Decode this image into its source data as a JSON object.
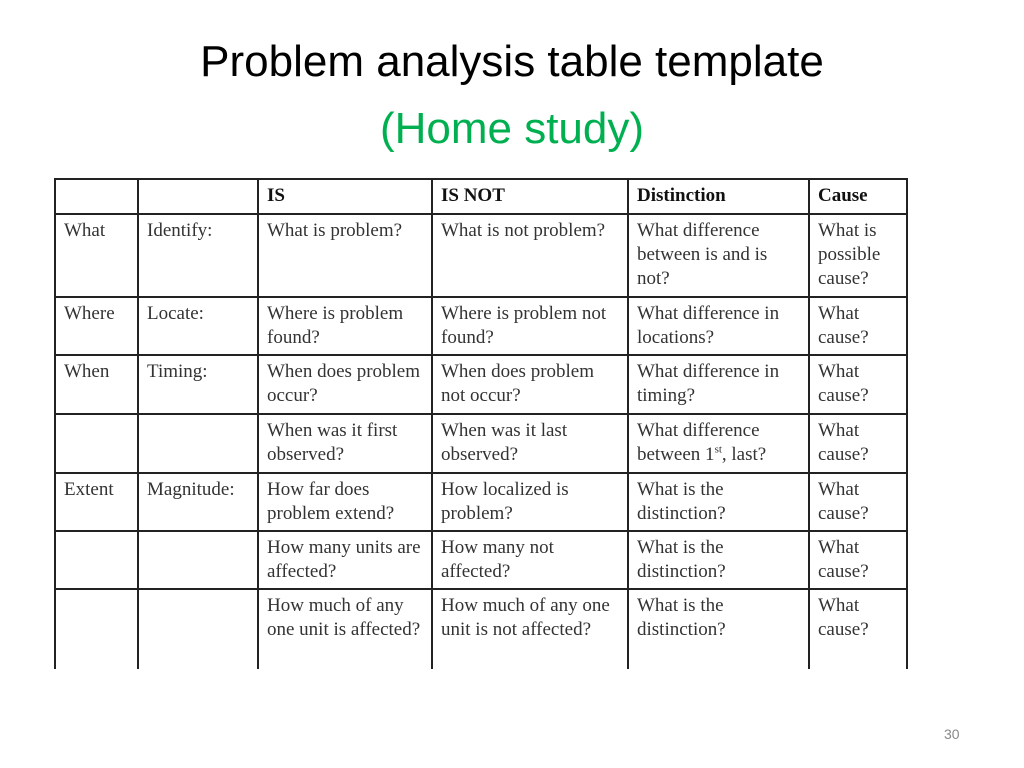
{
  "slide": {
    "title": "Problem analysis table template",
    "subtitle": "(Home study)",
    "page_number": "30",
    "subtitle_color": "#00b050"
  },
  "table": {
    "headers": [
      "",
      "",
      "IS",
      "IS NOT",
      "Distinction",
      "Cause"
    ],
    "rows": [
      [
        "What",
        "Identify:",
        "What is problem?",
        "What is not problem?",
        "What difference between is and is not?",
        "What is possible cause?"
      ],
      [
        "Where",
        "Locate:",
        "Where is problem found?",
        "Where is problem not found?",
        "What difference in locations?",
        "What cause?"
      ],
      [
        "When",
        "Timing:",
        "When does problem occur?",
        "When does problem not occur?",
        "What difference in timing?",
        "What cause?"
      ],
      [
        "",
        "",
        "When was it first observed?",
        "When was it last observed?",
        {
          "before": "What difference between 1",
          "sup": "st",
          "after": ", last?"
        },
        "What cause?"
      ],
      [
        "Extent",
        "Magnitude:",
        "How far does problem extend?",
        "How localized is problem?",
        "What is the distinction?",
        "What cause?"
      ],
      [
        "",
        "",
        "How many units are affected?",
        "How many not affected?",
        "What is the distinction?",
        "What cause?"
      ],
      [
        "",
        "",
        "How much of any one unit is affected?",
        "How much of any one unit is not affected?",
        "What is the distinction?",
        "What cause?"
      ]
    ]
  }
}
